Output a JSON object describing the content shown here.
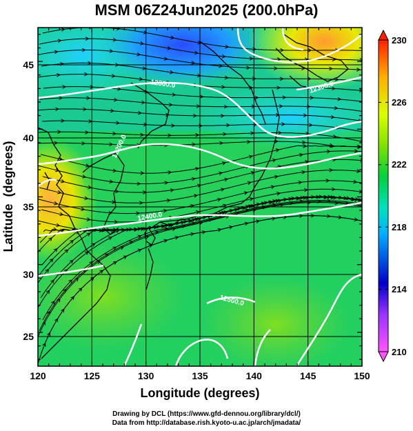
{
  "title": "MSM 06Z24Jun2025 (200.0hPa)",
  "chart_data": {
    "type": "heatmap",
    "title": "MSM 06Z24Jun2025 (200.0hPa)",
    "xlabel": "Longitude (degrees)",
    "ylabel": "Latitude  (degrees)",
    "xlim": [
      120,
      150
    ],
    "ylim": [
      22.5,
      47.5
    ],
    "x_ticks": [
      "120",
      "125",
      "130",
      "135",
      "140",
      "145",
      "150"
    ],
    "y_ticks": [
      "25",
      "30",
      "35",
      "40",
      "45"
    ],
    "colorbar": {
      "min": 210,
      "max": 230,
      "ticks": [
        "210",
        "214",
        "218",
        "222",
        "226",
        "230"
      ],
      "palette": [
        "#ff55ff",
        "#0000c8",
        "#00c8ff",
        "#00e060",
        "#c8ff00",
        "#ffa000",
        "#ff2000"
      ]
    },
    "contour_labels": [
      "12300.0",
      "12200.0",
      "12400.0",
      "12500.0"
    ],
    "grid": true
  },
  "credits": {
    "line1": "Drawing by DCL (https://www.gfd-dennou.org/library/dcl/)",
    "line2": "Data from http://database.rish.kyoto-u.ac.jp/arch/jmadata/"
  }
}
